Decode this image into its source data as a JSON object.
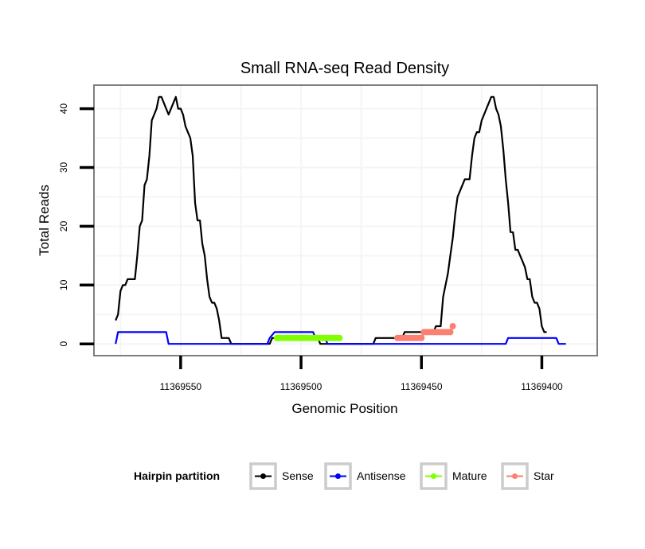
{
  "chart_data": {
    "type": "line",
    "title": "Small RNA-seq Read Density",
    "xlabel": "Genomic Position",
    "ylabel": "Total Reads",
    "x_reversed": true,
    "xlim": [
      11369586,
      11369377
    ],
    "ylim": [
      -2,
      44
    ],
    "x_ticks": [
      11369550,
      11369500,
      11369450,
      11369400
    ],
    "x_tick_labels": [
      "11369550",
      "11369500",
      "11369450",
      "11369400"
    ],
    "y_ticks": [
      0,
      10,
      20,
      30,
      40
    ],
    "y_tick_labels": [
      "0",
      "10",
      "20",
      "30",
      "40"
    ],
    "grid": true,
    "legend": {
      "title": "Hairpin partition",
      "position": "bottom",
      "entries": [
        "Sense",
        "Antisense",
        "Mature",
        "Star"
      ]
    },
    "series": [
      {
        "name": "Sense",
        "color": "#000000",
        "points": [
          [
            11369577,
            4
          ],
          [
            11369576,
            5
          ],
          [
            11369575,
            9
          ],
          [
            11369574,
            10
          ],
          [
            11369573,
            10
          ],
          [
            11369572,
            11
          ],
          [
            11369571,
            11
          ],
          [
            11369569,
            11
          ],
          [
            11369568,
            15
          ],
          [
            11369567,
            20
          ],
          [
            11369566,
            21
          ],
          [
            11369565,
            27
          ],
          [
            11369564,
            28
          ],
          [
            11369563,
            32
          ],
          [
            11369562,
            38
          ],
          [
            11369561,
            39
          ],
          [
            11369560,
            40
          ],
          [
            11369559,
            42
          ],
          [
            11369558,
            42
          ],
          [
            11369555,
            39
          ],
          [
            11369552,
            42
          ],
          [
            11369551,
            40
          ],
          [
            11369550,
            40
          ],
          [
            11369549,
            39
          ],
          [
            11369548,
            37
          ],
          [
            11369547,
            36
          ],
          [
            11369546,
            35
          ],
          [
            11369545,
            32
          ],
          [
            11369544,
            24
          ],
          [
            11369543,
            21
          ],
          [
            11369542,
            21
          ],
          [
            11369541,
            17
          ],
          [
            11369540,
            15
          ],
          [
            11369539,
            11
          ],
          [
            11369538,
            8
          ],
          [
            11369537,
            7
          ],
          [
            11369536,
            7
          ],
          [
            11369535,
            6
          ],
          [
            11369534,
            4
          ],
          [
            11369533,
            1
          ],
          [
            11369530,
            1
          ],
          [
            11369529,
            0
          ],
          [
            11369513,
            0
          ],
          [
            11369512,
            1
          ],
          [
            11369493,
            1
          ],
          [
            11369492,
            0
          ],
          [
            11369470,
            0
          ],
          [
            11369469,
            1
          ],
          [
            11369458,
            1
          ],
          [
            11369457,
            2
          ],
          [
            11369445,
            2
          ],
          [
            11369444,
            3
          ],
          [
            11369442,
            3
          ],
          [
            11369441,
            8
          ],
          [
            11369440,
            10
          ],
          [
            11369439,
            12
          ],
          [
            11369438,
            15
          ],
          [
            11369437,
            18
          ],
          [
            11369436,
            22
          ],
          [
            11369435,
            25
          ],
          [
            11369433,
            27
          ],
          [
            11369432,
            28
          ],
          [
            11369430,
            28
          ],
          [
            11369429,
            32
          ],
          [
            11369428,
            35
          ],
          [
            11369427,
            36
          ],
          [
            11369426,
            36
          ],
          [
            11369425,
            38
          ],
          [
            11369424,
            39
          ],
          [
            11369423,
            40
          ],
          [
            11369421,
            42
          ],
          [
            11369420,
            42
          ],
          [
            11369419,
            40
          ],
          [
            11369418,
            39
          ],
          [
            11369417,
            37
          ],
          [
            11369416,
            33
          ],
          [
            11369415,
            28
          ],
          [
            11369414,
            24
          ],
          [
            11369413,
            19
          ],
          [
            11369412,
            19
          ],
          [
            11369411,
            16
          ],
          [
            11369410,
            16
          ],
          [
            11369409,
            15
          ],
          [
            11369408,
            14
          ],
          [
            11369407,
            13
          ],
          [
            11369406,
            11
          ],
          [
            11369405,
            11
          ],
          [
            11369404,
            8
          ],
          [
            11369403,
            7
          ],
          [
            11369402,
            7
          ],
          [
            11369401,
            6
          ],
          [
            11369400,
            3
          ],
          [
            11369399,
            2
          ],
          [
            11369398,
            2
          ]
        ]
      },
      {
        "name": "Antisense",
        "color": "#0000ff",
        "points": [
          [
            11369577,
            0
          ],
          [
            11369576,
            2
          ],
          [
            11369563,
            2
          ],
          [
            11369562,
            2
          ],
          [
            11369556,
            2
          ],
          [
            11369555,
            0
          ],
          [
            11369514,
            0
          ],
          [
            11369513,
            1
          ],
          [
            11369511,
            2
          ],
          [
            11369495,
            2
          ],
          [
            11369494,
            1
          ],
          [
            11369490,
            1
          ],
          [
            11369489,
            0
          ],
          [
            11369415,
            0
          ],
          [
            11369414,
            1
          ],
          [
            11369394,
            1
          ],
          [
            11369393,
            0
          ],
          [
            11369390,
            0
          ]
        ]
      },
      {
        "name": "Mature",
        "color": "#7fff00",
        "points": [
          [
            11369510,
            1
          ],
          [
            11369509,
            1
          ],
          [
            11369508,
            1
          ],
          [
            11369507,
            1
          ],
          [
            11369506,
            1
          ],
          [
            11369505,
            1
          ],
          [
            11369504,
            1
          ],
          [
            11369503,
            1
          ],
          [
            11369502,
            1
          ],
          [
            11369501,
            1
          ],
          [
            11369500,
            1
          ],
          [
            11369499,
            1
          ],
          [
            11369498,
            1
          ],
          [
            11369497,
            1
          ],
          [
            11369496,
            1
          ],
          [
            11369495,
            1
          ],
          [
            11369494,
            1
          ],
          [
            11369493,
            1
          ],
          [
            11369492,
            1
          ],
          [
            11369491,
            1
          ],
          [
            11369490,
            1
          ],
          [
            11369489,
            1
          ],
          [
            11369488,
            1
          ],
          [
            11369487,
            1
          ],
          [
            11369486,
            1
          ],
          [
            11369485,
            1
          ],
          [
            11369484,
            1
          ]
        ]
      },
      {
        "name": "Star",
        "color": "#fa8072",
        "points": [
          [
            11369460,
            1
          ],
          [
            11369459,
            1
          ],
          [
            11369458,
            1
          ],
          [
            11369457,
            1
          ],
          [
            11369456,
            1
          ],
          [
            11369455,
            1
          ],
          [
            11369454,
            1
          ],
          [
            11369453,
            1
          ],
          [
            11369452,
            1
          ],
          [
            11369451,
            1
          ],
          [
            11369450,
            1
          ],
          [
            11369449,
            2
          ],
          [
            11369448,
            2
          ],
          [
            11369447,
            2
          ],
          [
            11369446,
            2
          ],
          [
            11369445,
            2
          ],
          [
            11369444,
            2
          ],
          [
            11369443,
            2
          ],
          [
            11369442,
            2
          ],
          [
            11369441,
            2
          ],
          [
            11369440,
            2
          ],
          [
            11369439,
            2
          ],
          [
            11369438,
            2
          ],
          [
            11369437,
            3
          ]
        ]
      }
    ]
  }
}
